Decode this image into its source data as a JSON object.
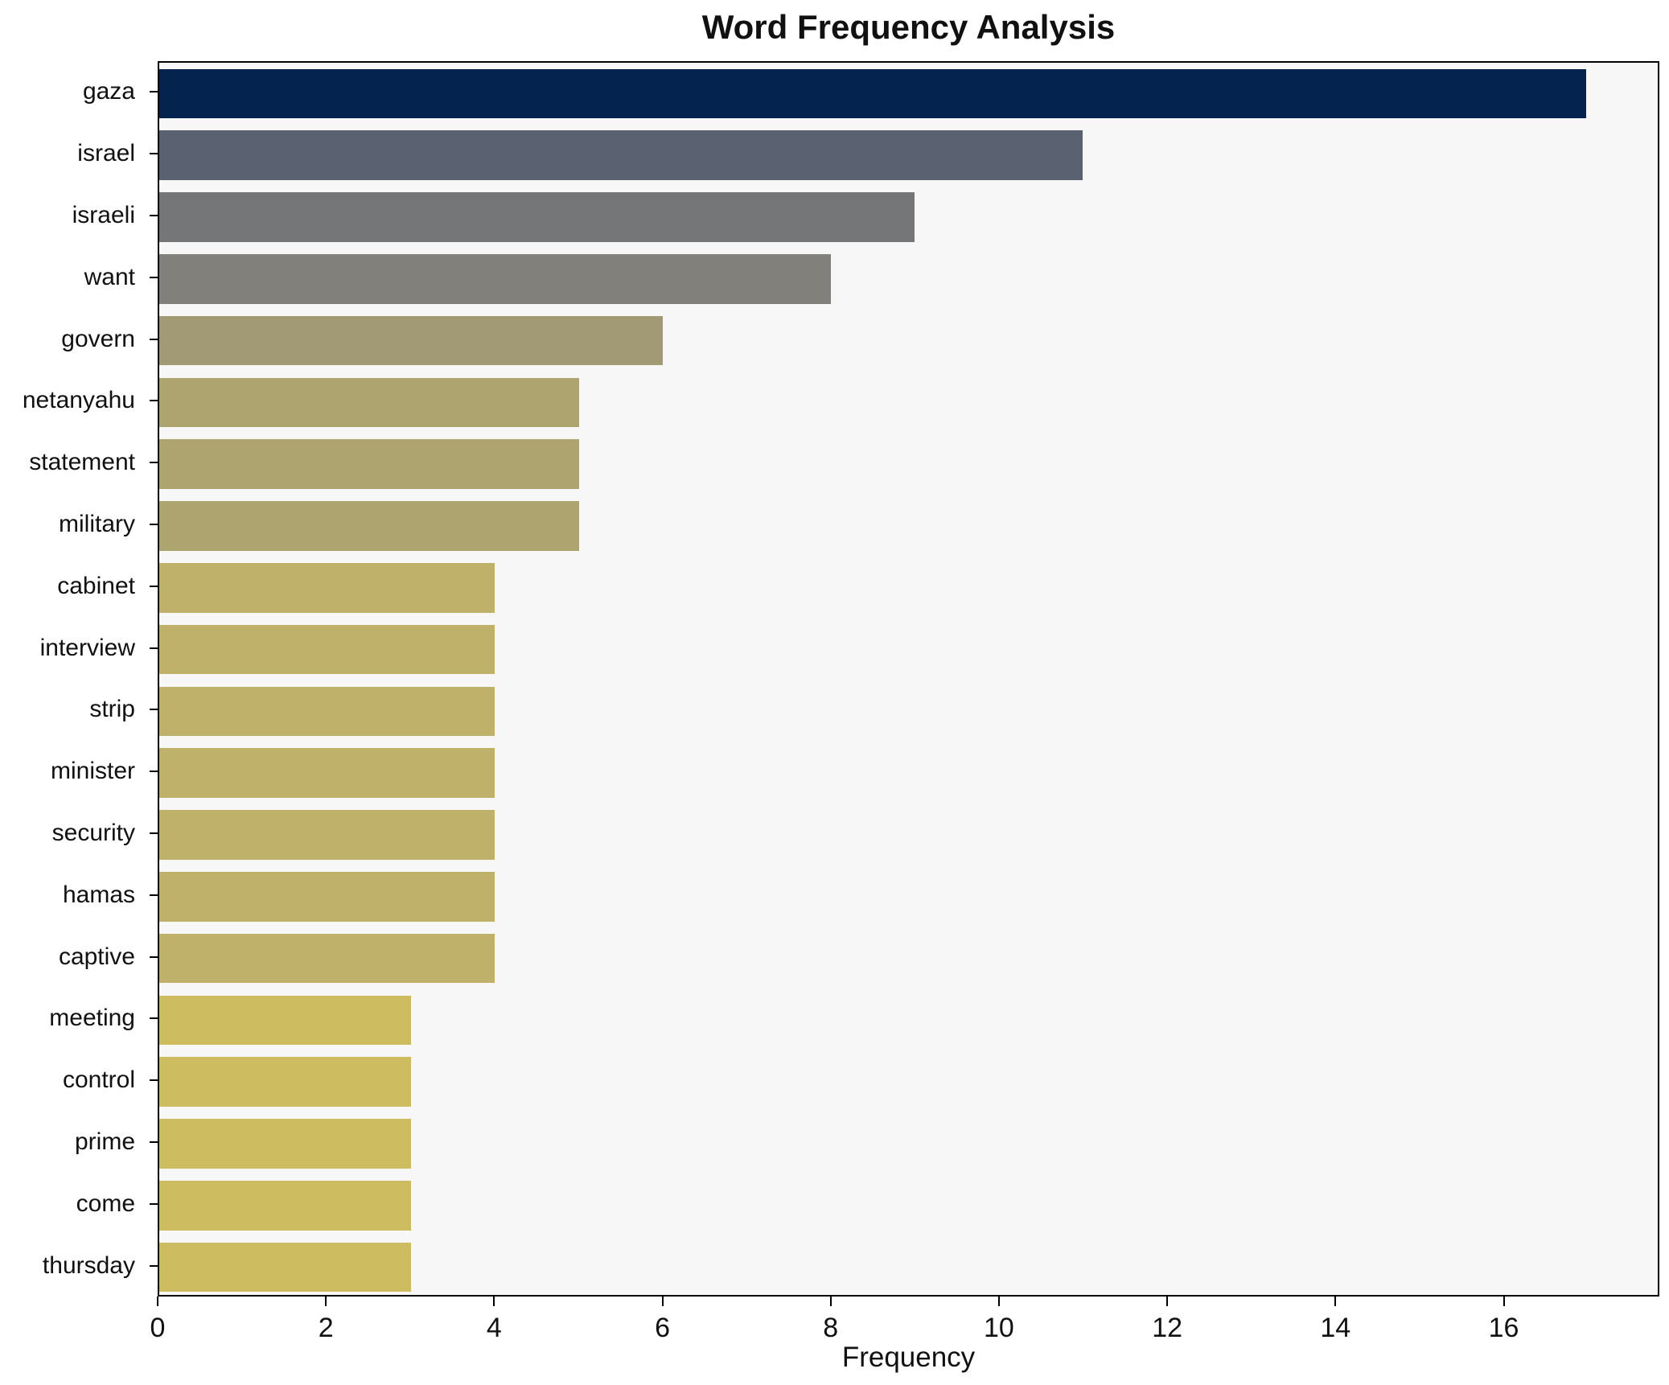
{
  "title": "Word Frequency Analysis",
  "chart_data": {
    "type": "bar",
    "orientation": "horizontal",
    "title": "Word Frequency Analysis",
    "xlabel": "Frequency",
    "ylabel": "",
    "categories": [
      "gaza",
      "israel",
      "israeli",
      "want",
      "govern",
      "netanyahu",
      "statement",
      "military",
      "cabinet",
      "interview",
      "strip",
      "minister",
      "security",
      "hamas",
      "captive",
      "meeting",
      "control",
      "prime",
      "come",
      "thursday"
    ],
    "values": [
      17,
      11,
      9,
      8,
      6,
      5,
      5,
      5,
      4,
      4,
      4,
      4,
      4,
      4,
      4,
      3,
      3,
      3,
      3,
      3
    ],
    "bar_colors": [
      "#04234f",
      "#5a6170",
      "#747678",
      "#82807a",
      "#a19a74",
      "#aea470",
      "#aea470",
      "#aea470",
      "#bfb169",
      "#bfb169",
      "#bfb169",
      "#bfb169",
      "#bfb169",
      "#bfb169",
      "#bfb169",
      "#cdbd60",
      "#cdbd60",
      "#cdbd60",
      "#cdbd60",
      "#cdbd60"
    ],
    "xlim": [
      0,
      17.85
    ],
    "xticks": [
      0,
      2,
      4,
      6,
      8,
      10,
      12,
      14,
      16
    ],
    "grid": false,
    "legend": "none",
    "plot_background": "#f7f7f7",
    "figure_background": "#ffffff",
    "spine_color": "#000000",
    "bar_height_fraction": 0.8
  }
}
